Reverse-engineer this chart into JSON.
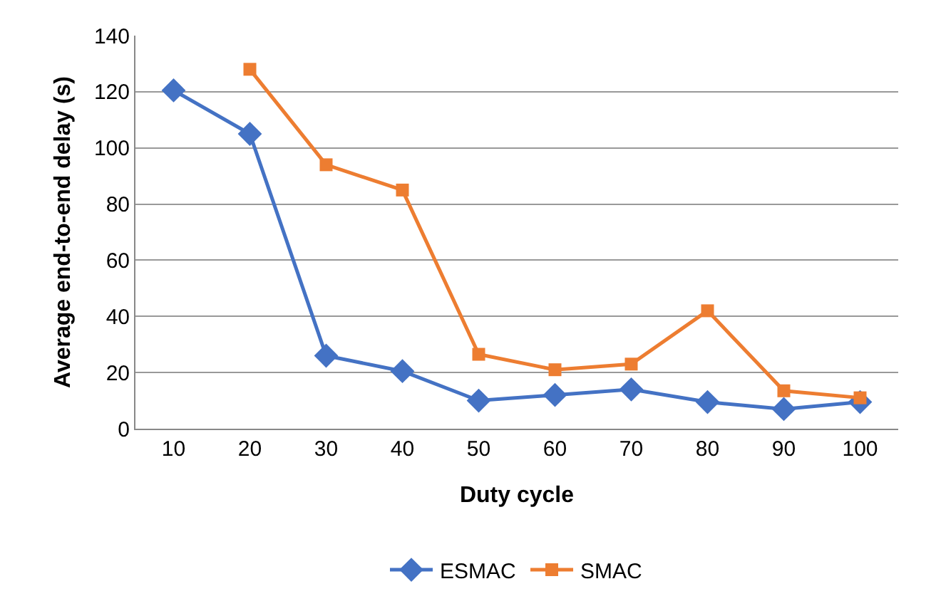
{
  "chart_data": {
    "type": "line",
    "xlabel": "Duty cycle",
    "ylabel": "Average end-to-end delay (s)",
    "categories": [
      "10",
      "20",
      "30",
      "40",
      "50",
      "60",
      "70",
      "80",
      "90",
      "100"
    ],
    "series": [
      {
        "name": "ESMAC",
        "color": "#4472c4",
        "marker": "diamond",
        "values": [
          120.5,
          105,
          26,
          20.5,
          10,
          12,
          14,
          9.5,
          7,
          9.5
        ]
      },
      {
        "name": "SMAC",
        "color": "#ed7d31",
        "marker": "square",
        "values": [
          null,
          128,
          94,
          85,
          26.5,
          21,
          23,
          42,
          13.5,
          11
        ]
      }
    ],
    "ylim": [
      0,
      140
    ],
    "yticks": [
      0,
      20,
      40,
      60,
      80,
      100,
      120,
      140
    ],
    "grid": "y",
    "legend": "bottom",
    "line_style": "solid"
  }
}
